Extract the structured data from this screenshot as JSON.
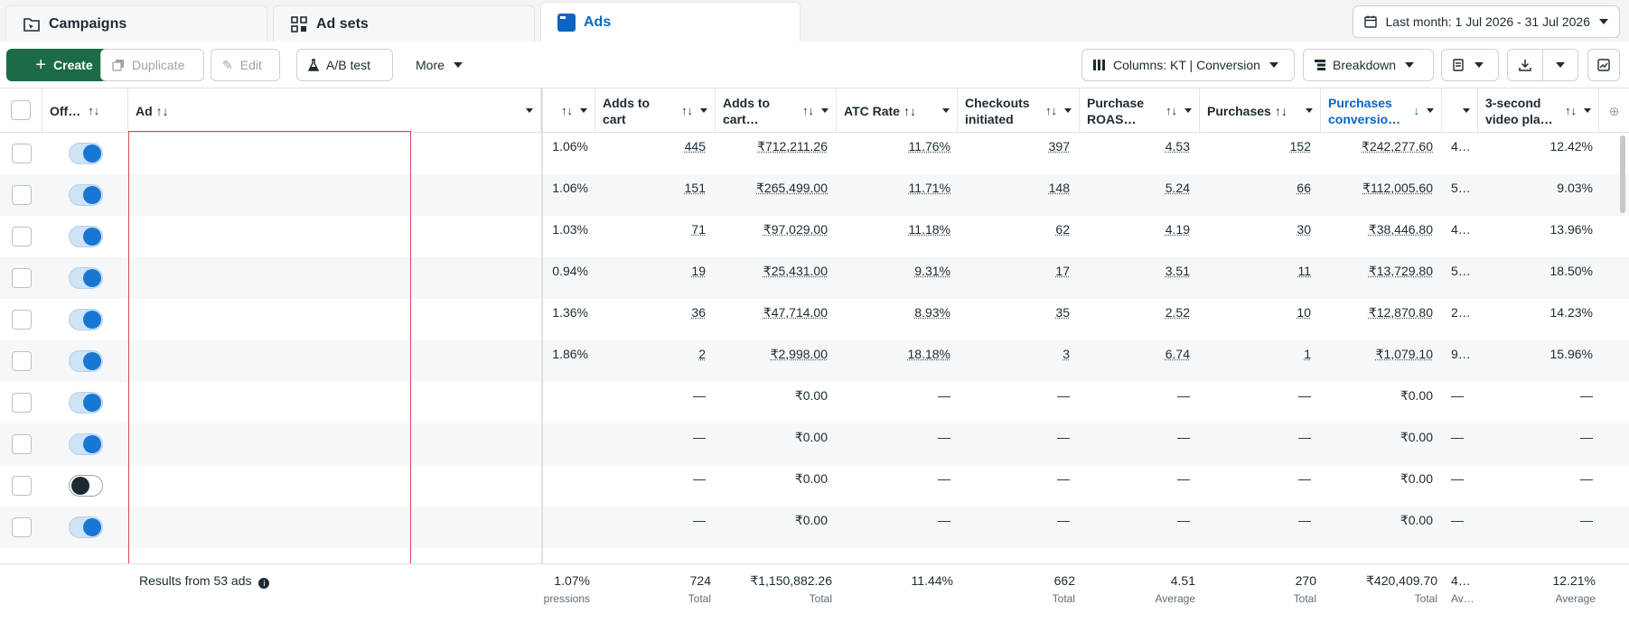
{
  "tabs": [
    {
      "label": "Campaigns",
      "icon": "folder-icon"
    },
    {
      "label": "Ad sets",
      "icon": "grid-icon"
    },
    {
      "label": "Ads",
      "icon": "ad-icon",
      "active": true
    }
  ],
  "date_range": "Last month: 1 Jul 2026 - 31 Jul 2026",
  "toolbar": {
    "create": "Create",
    "duplicate": "Duplicate",
    "edit": "Edit",
    "ab_test": "A/B test",
    "more": "More",
    "columns": "Columns: KT | Conversion",
    "breakdown": "Breakdown"
  },
  "columns": {
    "off": "Off…",
    "ad": "Ad",
    "adds_to_cart_1": "Adds to",
    "adds_to_cart_2": "cart",
    "adds_value_1": "Adds to",
    "adds_value_2": "cart…",
    "atc_rate": "ATC Rate",
    "checkouts_1": "Checkouts",
    "checkouts_2": "initiated",
    "roas_1": "Purchase",
    "roas_2": "ROAS…",
    "purchases": "Purchases",
    "pconv_1": "Purchases",
    "pconv_2": "conversio…",
    "video_1": "3-second",
    "video_2": "video pla…"
  },
  "rows": [
    {
      "on": true,
      "ctr": "1.06%",
      "atc": "445",
      "atcv": "₹712,211.26",
      "rate": "11.76%",
      "chk": "397",
      "roas": "4.53",
      "pur": "152",
      "pconv": "₹242,277.60",
      "x": "4…",
      "vid": "12.42%"
    },
    {
      "on": true,
      "ctr": "1.06%",
      "atc": "151",
      "atcv": "₹265,499.00",
      "rate": "11.71%",
      "chk": "148",
      "roas": "5.24",
      "pur": "66",
      "pconv": "₹112,005.60",
      "x": "5…",
      "vid": "9.03%"
    },
    {
      "on": true,
      "ctr": "1.03%",
      "atc": "71",
      "atcv": "₹97,029.00",
      "rate": "11.18%",
      "chk": "62",
      "roas": "4.19",
      "pur": "30",
      "pconv": "₹38,446.80",
      "x": "4…",
      "vid": "13.96%"
    },
    {
      "on": true,
      "ctr": "0.94%",
      "atc": "19",
      "atcv": "₹25,431.00",
      "rate": "9.31%",
      "chk": "17",
      "roas": "3.51",
      "pur": "11",
      "pconv": "₹13,729.80",
      "x": "5…",
      "vid": "18.50%"
    },
    {
      "on": true,
      "ctr": "1.36%",
      "atc": "36",
      "atcv": "₹47,714.00",
      "rate": "8.93%",
      "chk": "35",
      "roas": "2.52",
      "pur": "10",
      "pconv": "₹12,870.80",
      "x": "2…",
      "vid": "14.23%"
    },
    {
      "on": true,
      "ctr": "1.86%",
      "atc": "2",
      "atcv": "₹2,998.00",
      "rate": "18.18%",
      "chk": "3",
      "roas": "6.74",
      "pur": "1",
      "pconv": "₹1,079.10",
      "x": "9…",
      "vid": "15.96%"
    },
    {
      "on": true,
      "ctr": "",
      "atc": "—",
      "atcv": "₹0.00",
      "rate": "—",
      "chk": "—",
      "roas": "—",
      "pur": "—",
      "pconv": "₹0.00",
      "x": "—",
      "vid": "—"
    },
    {
      "on": true,
      "ctr": "",
      "atc": "—",
      "atcv": "₹0.00",
      "rate": "—",
      "chk": "—",
      "roas": "—",
      "pur": "—",
      "pconv": "₹0.00",
      "x": "—",
      "vid": "—"
    },
    {
      "on": false,
      "ctr": "",
      "atc": "—",
      "atcv": "₹0.00",
      "rate": "—",
      "chk": "—",
      "roas": "—",
      "pur": "—",
      "pconv": "₹0.00",
      "x": "—",
      "vid": "—"
    },
    {
      "on": true,
      "ctr": "",
      "atc": "—",
      "atcv": "₹0.00",
      "rate": "—",
      "chk": "—",
      "roas": "—",
      "pur": "—",
      "pconv": "₹0.00",
      "x": "—",
      "vid": "—"
    }
  ],
  "footer": {
    "results": "Results from 53 ads",
    "ctr": "1.07%",
    "ctr_sub": "pressions",
    "atc": "724",
    "atc_sub": "Total",
    "atcv": "₹1,150,882.26",
    "atcv_sub": "Total",
    "rate": "11.44%",
    "chk": "662",
    "chk_sub": "Total",
    "roas": "4.51",
    "roas_sub": "Average",
    "pur": "270",
    "pur_sub": "Total",
    "pconv": "₹420,409.70",
    "pconv_sub": "Total",
    "x": "4…",
    "x_sub": "Av…",
    "vid": "12.21%",
    "vid_sub": "Average"
  },
  "colors": {
    "accent": "#0a66c2",
    "create": "#1b6b45",
    "toggle_on": "#1877d2",
    "highlight": "#e04848"
  }
}
